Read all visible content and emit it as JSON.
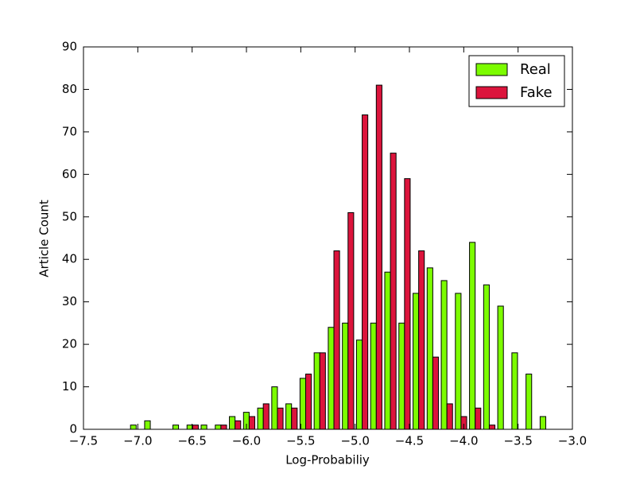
{
  "chart_data": {
    "type": "histogram",
    "xlabel": "Log-Probabiliy",
    "ylabel": "Article Count",
    "bins": [
      -7.08,
      -6.95,
      -6.82,
      -6.69,
      -6.56,
      -6.43,
      -6.3,
      -6.17,
      -6.04,
      -5.91,
      -5.78,
      -5.65,
      -5.52,
      -5.39,
      -5.26,
      -5.13,
      -5.0,
      -4.87,
      -4.74,
      -4.61,
      -4.48,
      -4.35,
      -4.22,
      -4.09,
      -3.96,
      -3.83,
      -3.7,
      -3.57,
      -3.44,
      -3.31,
      -3.18
    ],
    "series": [
      {
        "name": "Real",
        "color": "#7cfc00",
        "values": [
          1,
          2,
          0,
          1,
          1,
          1,
          1,
          3,
          4,
          5,
          10,
          6,
          12,
          18,
          24,
          25,
          21,
          25,
          37,
          25,
          32,
          38,
          35,
          32,
          44,
          34,
          29,
          18,
          13,
          3
        ]
      },
      {
        "name": "Fake",
        "color": "#dc143c",
        "values": [
          0,
          0,
          0,
          0,
          1,
          0,
          1,
          2,
          3,
          6,
          5,
          5,
          13,
          18,
          42,
          51,
          74,
          81,
          65,
          59,
          42,
          17,
          6,
          3,
          5,
          1,
          0,
          0,
          0,
          0
        ]
      }
    ],
    "xlim": [
      -7.5,
      -3.0
    ],
    "xticks": [
      {
        "value": -7.5,
        "label": "−7.5"
      },
      {
        "value": -7.0,
        "label": "−7.0"
      },
      {
        "value": -6.5,
        "label": "−6.5"
      },
      {
        "value": -6.0,
        "label": "−6.0"
      },
      {
        "value": -5.5,
        "label": "−5.5"
      },
      {
        "value": -5.0,
        "label": "−5.0"
      },
      {
        "value": -4.5,
        "label": "−4.5"
      },
      {
        "value": -4.0,
        "label": "−4.0"
      },
      {
        "value": -3.5,
        "label": "−3.5"
      },
      {
        "value": -3.0,
        "label": "−3.0"
      }
    ],
    "ylim": [
      0,
      90
    ],
    "yticks": [
      0,
      10,
      20,
      30,
      40,
      50,
      60,
      70,
      80,
      90
    ],
    "legend": "upper right",
    "grid": false
  }
}
